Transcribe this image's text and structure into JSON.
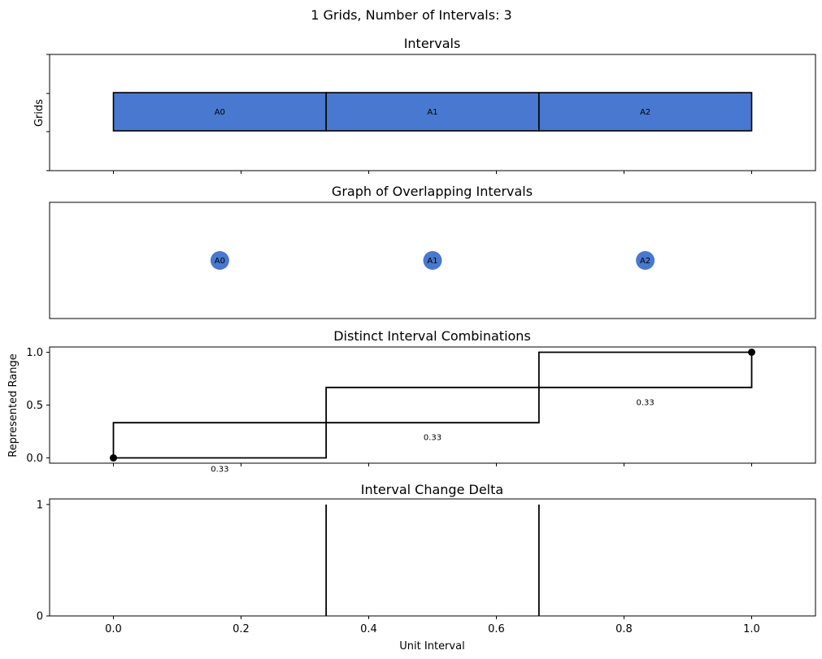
{
  "figure": {
    "suptitle": "1 Grids, Number of Intervals: 3"
  },
  "chart_data": [
    {
      "type": "bar",
      "title": "Intervals",
      "ylabel": "Grids",
      "xlim": [
        -0.1,
        1.1
      ],
      "intervals": [
        {
          "label": "A0",
          "start": 0.0,
          "end": 0.3333
        },
        {
          "label": "A1",
          "start": 0.3333,
          "end": 0.6667
        },
        {
          "label": "A2",
          "start": 0.6667,
          "end": 1.0
        }
      ],
      "color": "#4878cf"
    },
    {
      "type": "scatter",
      "title": "Graph of Overlapping Intervals",
      "xlim": [
        -0.1,
        1.1
      ],
      "nodes": [
        {
          "label": "A0",
          "x": 0.1667
        },
        {
          "label": "A1",
          "x": 0.5
        },
        {
          "label": "A2",
          "x": 0.8333
        }
      ],
      "color": "#4878cf"
    },
    {
      "type": "line",
      "title": "Distinct Interval Combinations",
      "ylabel": "Represented Range",
      "xlim": [
        -0.1,
        1.1
      ],
      "ylim": [
        -0.05,
        1.05
      ],
      "yticks": [
        "0.0",
        "0.5",
        "1.0"
      ],
      "series": [
        {
          "points": [
            [
              0.0,
              0.0
            ],
            [
              0.0,
              0.3333
            ],
            [
              0.3333,
              0.3333
            ],
            [
              0.3333,
              0.0
            ],
            [
              0.0,
              0.0
            ]
          ]
        },
        {
          "points": [
            [
              0.3333,
              0.3333
            ],
            [
              0.3333,
              0.6667
            ],
            [
              0.6667,
              0.6667
            ],
            [
              0.6667,
              0.3333
            ],
            [
              0.3333,
              0.3333
            ]
          ]
        },
        {
          "points": [
            [
              0.6667,
              0.6667
            ],
            [
              0.6667,
              1.0
            ],
            [
              1.0,
              1.0
            ],
            [
              1.0,
              0.6667
            ],
            [
              0.6667,
              0.6667
            ]
          ]
        }
      ],
      "endpoints": [
        [
          0.0,
          0.0
        ],
        [
          1.0,
          1.0
        ]
      ],
      "annotations": [
        {
          "text": "0.33",
          "x": 0.1667,
          "y": -0.1
        },
        {
          "text": "0.33",
          "x": 0.5,
          "y": 0.2
        },
        {
          "text": "0.33",
          "x": 0.8333,
          "y": 0.53
        }
      ]
    },
    {
      "type": "line",
      "title": "Interval Change Delta",
      "xlabel": "Unit Interval",
      "xlim": [
        -0.1,
        1.1
      ],
      "ylim": [
        0,
        1.05
      ],
      "yticks": [
        "0",
        "1"
      ],
      "xticks": [
        "0.0",
        "0.2",
        "0.4",
        "0.6",
        "0.8",
        "1.0"
      ],
      "spikes": [
        {
          "x": 0.3333,
          "value": 1
        },
        {
          "x": 0.6667,
          "value": 1
        }
      ]
    }
  ]
}
